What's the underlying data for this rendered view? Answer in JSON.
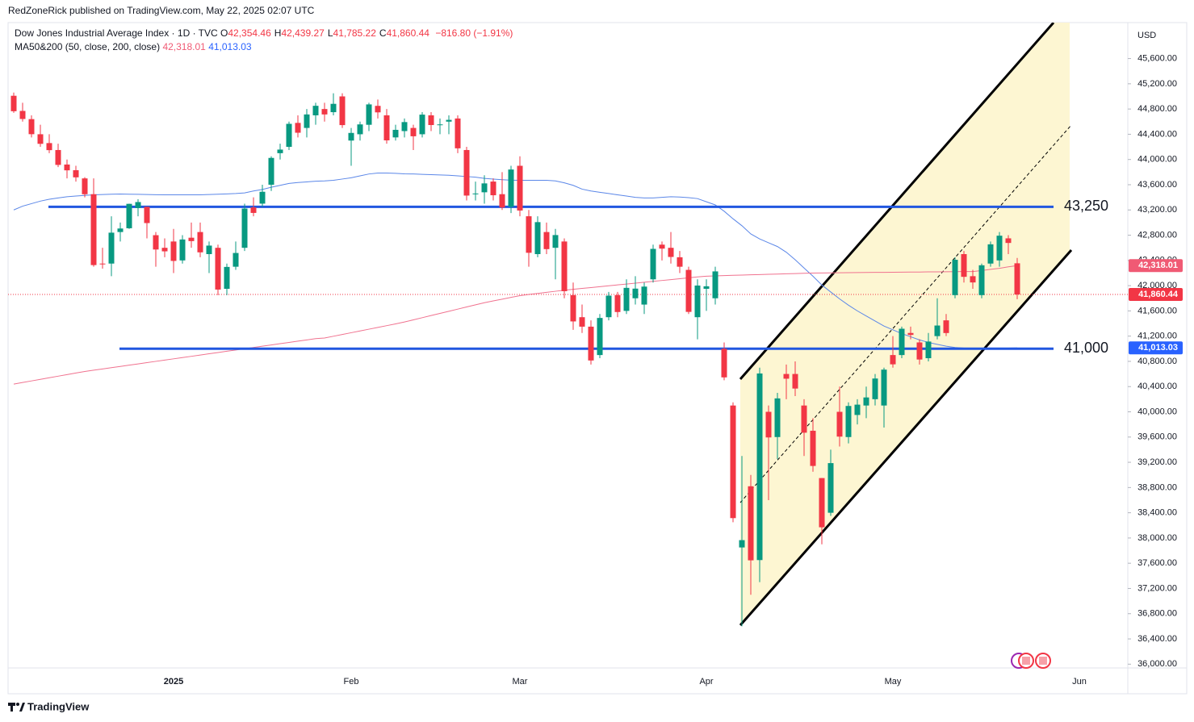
{
  "chart_data": {
    "type": "candlestick",
    "attribution": "RedZoneRick published on TradingView.com, May 22, 2025 02:07 UTC",
    "title": "Dow Jones Industrial Average Index · 1D · TVC",
    "ohlc_legend": [
      {
        "key": "O",
        "value": "42,354.46"
      },
      {
        "key": "H",
        "value": "42,439.27"
      },
      {
        "key": "L",
        "value": "41,785.22"
      },
      {
        "key": "C",
        "value": "41,860.44"
      }
    ],
    "change": "−816.80 (−1.91%)",
    "indicator": "MA50&200 (50, close, 200, close)",
    "currency": "USD",
    "brand": "TradingView",
    "up_color": "#089981",
    "down_color": "#f23645",
    "categories": [
      null,
      null,
      null,
      null,
      null,
      null,
      null,
      null,
      null,
      null,
      null,
      null,
      null,
      null,
      null,
      null,
      null,
      null,
      "2025",
      null,
      null,
      null,
      null,
      null,
      null,
      null,
      null,
      null,
      null,
      null,
      null,
      null,
      null,
      null,
      null,
      null,
      null,
      null,
      "Feb",
      null,
      null,
      null,
      null,
      null,
      null,
      null,
      null,
      null,
      null,
      null,
      null,
      null,
      null,
      null,
      null,
      null,
      null,
      "Mar",
      null,
      null,
      null,
      null,
      null,
      null,
      null,
      null,
      null,
      null,
      null,
      null,
      null,
      null,
      null,
      null,
      null,
      null,
      null,
      null,
      "Apr",
      null,
      null,
      null,
      null,
      null,
      null,
      null,
      null,
      null,
      null,
      null,
      null,
      null,
      null,
      null,
      null,
      null,
      null,
      null,
      null,
      "May",
      null,
      null,
      null,
      null,
      null,
      null,
      null,
      null,
      null,
      null,
      null,
      null,
      null,
      null,
      null,
      null,
      null,
      null,
      null,
      null,
      "Jun",
      null,
      null,
      null,
      null
    ],
    "open": [
      45010,
      44770,
      44640,
      44400,
      44260,
      44150,
      43920,
      43830,
      43700,
      43450,
      42350,
      42350,
      42850,
      42910,
      43230,
      43250,
      42800,
      42600,
      42700,
      42400,
      42760,
      42850,
      42500,
      42600,
      41950,
      42300,
      42600,
      43240,
      43300,
      43600,
      44100,
      44200,
      44580,
      44500,
      44700,
      44800,
      44750,
      45000,
      44300,
      44400,
      44550,
      44850,
      44700,
      44350,
      44450,
      44500,
      44400,
      44700,
      44550,
      44600,
      44650,
      44150,
      43450,
      43480,
      43650,
      43450,
      43250,
      43900,
      43100,
      42500,
      42850,
      42600,
      42700,
      41850,
      41500,
      41350,
      40900,
      41500,
      41850,
      41600,
      41800,
      41700,
      42100,
      42650,
      42600,
      42450,
      42250,
      41500,
      41950,
      41800,
      41000,
      40100,
      37850,
      38820,
      37650,
      40000,
      39600,
      40600,
      40600,
      40100,
      39700,
      38950,
      38400,
      40000,
      39600,
      39950,
      40100,
      40200,
      40100,
      40900,
      40900,
      41250,
      41100,
      40850,
      41200,
      41450,
      41850,
      42500,
      42150,
      41850,
      42350,
      42400,
      42750,
      42354.46,
      null,
      null,
      null,
      null,
      null,
      null,
      null,
      null,
      null,
      null,
      null
    ],
    "high": [
      45060,
      44900,
      44700,
      44550,
      44400,
      44250,
      44000,
      43900,
      43720,
      43700,
      42600,
      43100,
      43000,
      43300,
      43370,
      43250,
      42850,
      42750,
      42900,
      42800,
      43000,
      43000,
      42700,
      42650,
      42350,
      42700,
      43300,
      43400,
      43600,
      44050,
      44250,
      44600,
      44700,
      44800,
      44900,
      44900,
      45050,
      45050,
      44500,
      44600,
      44900,
      44950,
      44800,
      44550,
      44650,
      44550,
      44750,
      44750,
      44650,
      44700,
      44700,
      44200,
      43650,
      43750,
      43700,
      43800,
      43900,
      44050,
      43200,
      43100,
      43000,
      42900,
      42750,
      42050,
      41700,
      41450,
      41550,
      41900,
      41900,
      42100,
      42150,
      42050,
      42650,
      42700,
      42850,
      42550,
      42300,
      42100,
      42100,
      42300,
      41100,
      40150,
      39300,
      39000,
      40700,
      40100,
      40300,
      40750,
      40800,
      40200,
      39900,
      38950,
      39400,
      40400,
      40150,
      40200,
      40400,
      40600,
      40700,
      41200,
      41350,
      41350,
      41150,
      41250,
      41800,
      41550,
      42450,
      42550,
      42250,
      42350,
      42700,
      42850,
      42800,
      42439.27,
      null,
      null,
      null,
      null,
      null,
      null,
      null,
      null,
      null,
      null,
      null
    ],
    "low": [
      44740,
      44600,
      44350,
      44200,
      44100,
      43880,
      43700,
      43650,
      43400,
      42300,
      42270,
      42150,
      42700,
      42900,
      43100,
      42750,
      42300,
      42450,
      42200,
      42350,
      42600,
      42450,
      42200,
      41850,
      41850,
      42250,
      42550,
      43100,
      43250,
      43500,
      44000,
      44150,
      44350,
      44350,
      44550,
      44600,
      44700,
      44500,
      43900,
      44300,
      44450,
      44650,
      44250,
      44300,
      44350,
      44150,
      44350,
      44450,
      44400,
      44400,
      44100,
      43350,
      43350,
      43300,
      43350,
      43200,
      43150,
      43100,
      42300,
      42450,
      42500,
      42100,
      41800,
      41300,
      41250,
      40750,
      40850,
      41450,
      41500,
      41550,
      41700,
      41550,
      42050,
      42400,
      42350,
      42200,
      41550,
      41150,
      41600,
      41700,
      40500,
      38250,
      36600,
      37100,
      37300,
      38600,
      39250,
      40200,
      40250,
      39300,
      39050,
      37900,
      38350,
      39450,
      39500,
      39800,
      39900,
      40100,
      39750,
      40700,
      40850,
      41150,
      40750,
      40800,
      41150,
      41200,
      41800,
      42050,
      41950,
      41800,
      42300,
      42300,
      42500,
      41785.22,
      null,
      null,
      null,
      null,
      null,
      null,
      null,
      null,
      null,
      null,
      null
    ],
    "close": [
      44765,
      44642,
      44401,
      44248,
      44148,
      43914,
      43828,
      43717,
      43449,
      42326,
      42342,
      42840,
      42906,
      43297,
      43325,
      42992,
      42573,
      42544,
      42392,
      42732,
      42706,
      42528,
      42635,
      41938,
      42297,
      42518,
      43222,
      43153,
      43488,
      44025,
      44157,
      44565,
      44424,
      44714,
      44851,
      44714,
      44882,
      44545,
      44421,
      44556,
      44873,
      44747,
      44303,
      44470,
      44593,
      44368,
      44711,
      44546,
      44556,
      44628,
      44177,
      43428,
      43461,
      43621,
      43433,
      43239,
      43841,
      43191,
      42521,
      43007,
      42579,
      42802,
      41912,
      41433,
      41350,
      40814,
      41488,
      41842,
      41582,
      41965,
      41953,
      41985,
      42583,
      42587,
      42455,
      42300,
      41584,
      42002,
      41990,
      42226,
      40546,
      38315,
      37966,
      37646,
      40608,
      39594,
      40213,
      40525,
      40369,
      39669,
      39142,
      38170,
      39187,
      39607,
      40093,
      40114,
      40228,
      40528,
      40669,
      40753,
      41317,
      41219,
      40829,
      41114,
      41368,
      41249,
      42410,
      42140,
      42051,
      42323,
      42655,
      42792,
      42677,
      41860.44,
      null,
      null,
      null,
      null,
      null,
      null,
      null,
      null,
      null,
      null,
      null
    ],
    "series": [
      {
        "color": "#5b87e8",
        "values": [
          43200,
          43260,
          43300,
          43340,
          43370,
          43390,
          43410,
          43420,
          43430,
          43440,
          43445,
          43450,
          43452,
          43450,
          43448,
          43445,
          43442,
          43440,
          43440,
          43440,
          43440,
          43440,
          43445,
          43450,
          43455,
          43460,
          43470,
          43500,
          43525,
          43560,
          43590,
          43620,
          43635,
          43645,
          43655,
          43660,
          43670,
          43690,
          43710,
          43740,
          43770,
          43785,
          43785,
          43780,
          43772,
          43770,
          43765,
          43760,
          43755,
          43750,
          43740,
          43730,
          43720,
          43700,
          43690,
          43680,
          43672,
          43670,
          43670,
          43670,
          43670,
          43660,
          43630,
          43590,
          43530,
          43500,
          43480,
          43460,
          43440,
          43420,
          43400,
          43390,
          43390,
          43400,
          43410,
          43405,
          43395,
          43380,
          43330,
          43280,
          43180,
          43060,
          42950,
          42820,
          42740,
          42680,
          42620,
          42530,
          42410,
          42280,
          42150,
          42010,
          41900,
          41790,
          41690,
          41600,
          41520,
          41440,
          41360,
          41300,
          41240,
          41190,
          41140,
          41100,
          41070,
          41040,
          41020,
          41010,
          41005,
          41000,
          41000,
          41005,
          41010,
          41013.03,
          null,
          null,
          null,
          null,
          null,
          null,
          null,
          null,
          null,
          null,
          null
        ]
      },
      {
        "color": "#f0728f",
        "values": [
          40440,
          40465,
          40490,
          40515,
          40540,
          40565,
          40590,
          40615,
          40640,
          40660,
          40680,
          40700,
          40720,
          40740,
          40760,
          40780,
          40800,
          40820,
          40840,
          40860,
          40880,
          40900,
          40920,
          40940,
          40960,
          40980,
          41000,
          41020,
          41040,
          41060,
          41080,
          41100,
          41120,
          41140,
          41160,
          41170,
          41198,
          41226,
          41254,
          41282,
          41310,
          41338,
          41366,
          41394,
          41424,
          41458,
          41492,
          41526,
          41560,
          41594,
          41628,
          41662,
          41696,
          41730,
          41758,
          41786,
          41814,
          41842,
          41860,
          41877,
          41894,
          41911,
          41928,
          41942,
          41956,
          41970,
          41984,
          41998,
          42012,
          42026,
          42040,
          42054,
          42068,
          42082,
          42096,
          42110,
          42124,
          42138,
          42150,
          42155,
          42160,
          42164,
          42168,
          42172,
          42176,
          42180,
          42184,
          42188,
          42192,
          42196,
          42200,
          42201,
          42203,
          42204,
          42206,
          42207,
          42209,
          42210,
          42211,
          42212,
          42214,
          42215,
          42216,
          42218,
          42219,
          42220,
          42222,
          42223,
          42224,
          42240,
          42258,
          42275,
          42298,
          42318.01,
          null,
          null,
          null,
          null,
          null,
          null,
          null,
          null,
          null,
          null,
          null
        ]
      }
    ],
    "levels": [
      {
        "value": 43250,
        "label": "43,250"
      },
      {
        "value": 41000,
        "label": "41,000"
      }
    ],
    "level_color": "#2157e0",
    "price_labels": [
      {
        "value": 42318.01,
        "label": "42,318.01",
        "color": "#f05a74"
      },
      {
        "value": 41860.44,
        "label": "41,860.44",
        "color": "#f23645"
      },
      {
        "value": 41013.03,
        "label": "41,013.03",
        "color": "#2962ff"
      }
    ],
    "ylim": [
      35940,
      46170
    ],
    "yticks": [
      {
        "value": 36000,
        "label": "36,000.00"
      },
      {
        "value": 36400,
        "label": "36,400.00"
      },
      {
        "value": 36800,
        "label": "36,800.00"
      },
      {
        "value": 37200,
        "label": "37,200.00"
      },
      {
        "value": 37600,
        "label": "37,600.00"
      },
      {
        "value": 38000,
        "label": "38,000.00"
      },
      {
        "value": 38400,
        "label": "38,400.00"
      },
      {
        "value": 38800,
        "label": "38,800.00"
      },
      {
        "value": 39200,
        "label": "39,200.00"
      },
      {
        "value": 39600,
        "label": "39,600.00"
      },
      {
        "value": 40000,
        "label": "40,000.00"
      },
      {
        "value": 40400,
        "label": "40,400.00"
      },
      {
        "value": 40800,
        "label": "40,800.00"
      },
      {
        "value": 41200,
        "label": "41,200.00"
      },
      {
        "value": 41600,
        "label": "41,600.00"
      },
      {
        "value": 42000,
        "label": "42,000.00"
      },
      {
        "value": 42400,
        "label": "42,400.00"
      },
      {
        "value": 42800,
        "label": "42,800.00"
      },
      {
        "value": 43200,
        "label": "43,200.00"
      },
      {
        "value": 43600,
        "label": "43,600.00"
      },
      {
        "value": 44000,
        "label": "44,000.00"
      },
      {
        "value": 44400,
        "label": "44,400.00"
      },
      {
        "value": 44800,
        "label": "44,800.00"
      },
      {
        "value": 45200,
        "label": "45,200.00"
      },
      {
        "value": 45600,
        "label": "45,600.00"
      }
    ]
  }
}
